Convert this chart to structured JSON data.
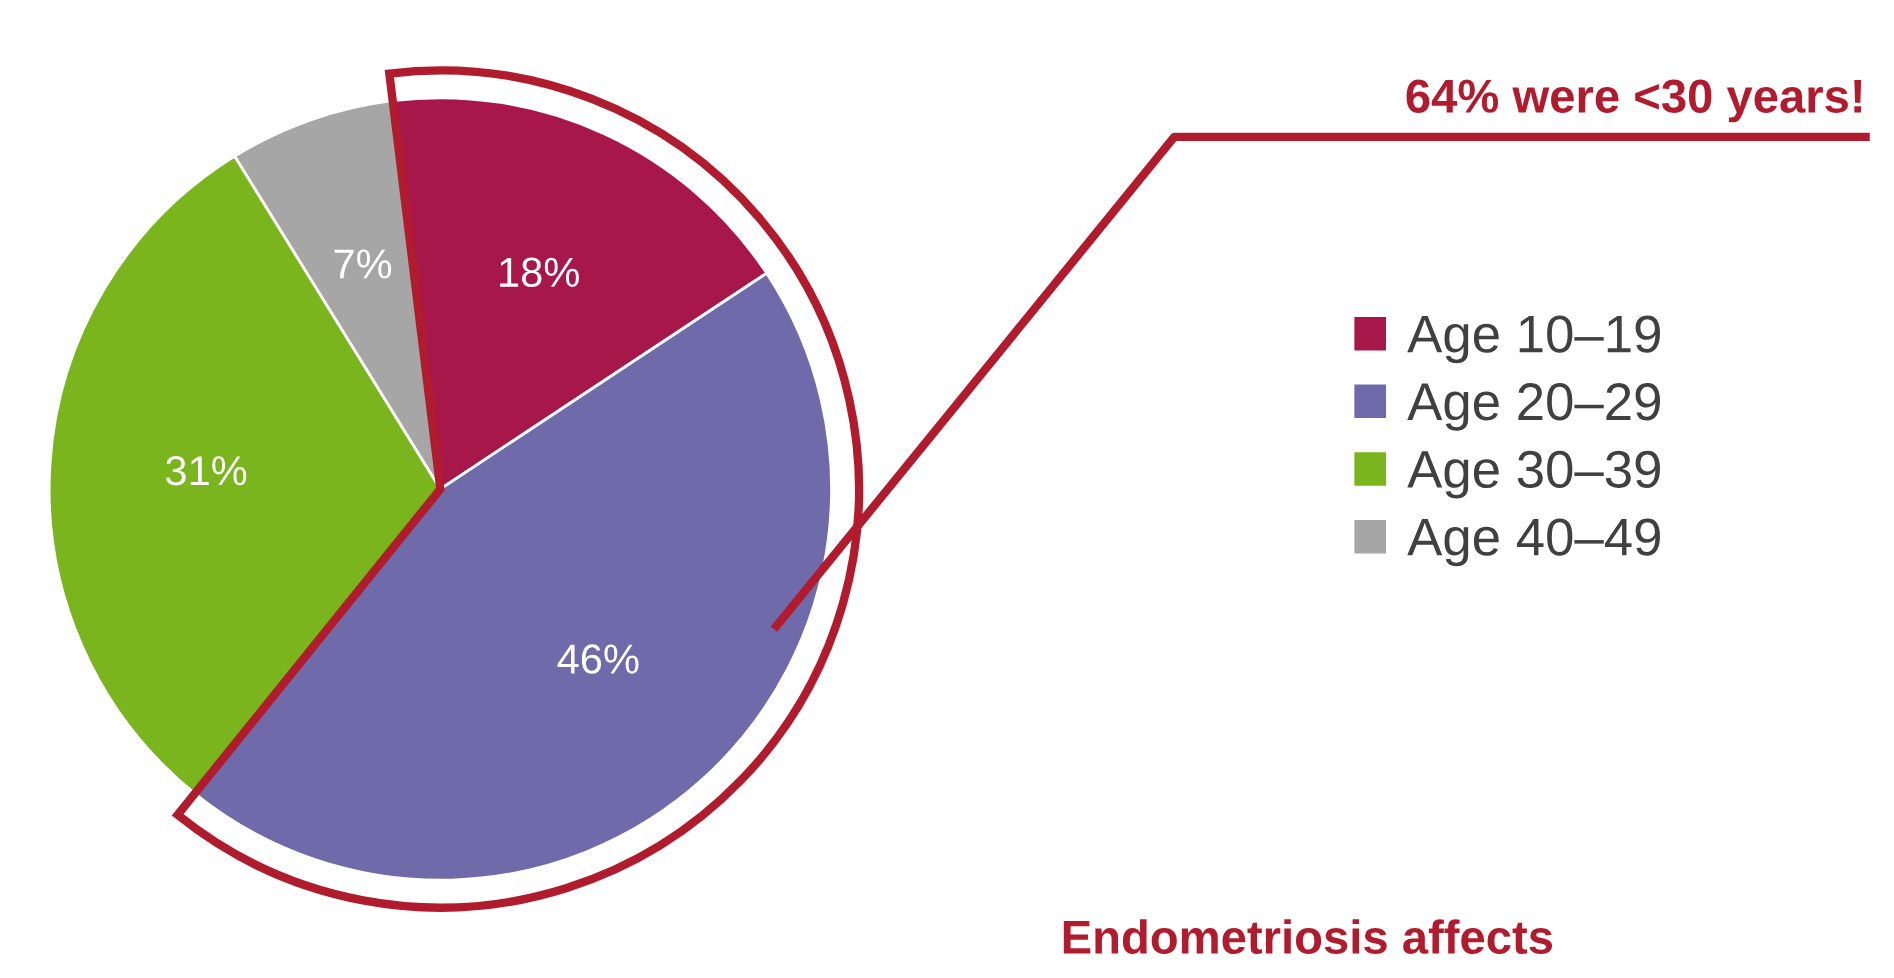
{
  "chart_data": {
    "type": "pie",
    "categories": [
      "Age 10–19",
      "Age 20–29",
      "Age 30–39",
      "Age 40–49"
    ],
    "values": [
      18,
      46,
      31,
      7
    ],
    "colors": [
      "#a8174a",
      "#6f6bab",
      "#7ab51d",
      "#a6a6a6"
    ],
    "value_labels": [
      "18%",
      "46%",
      "31%",
      "7%"
    ],
    "legend": "right",
    "annotations": [
      "64% were <30 years!",
      "Endometriosis affects"
    ]
  }
}
